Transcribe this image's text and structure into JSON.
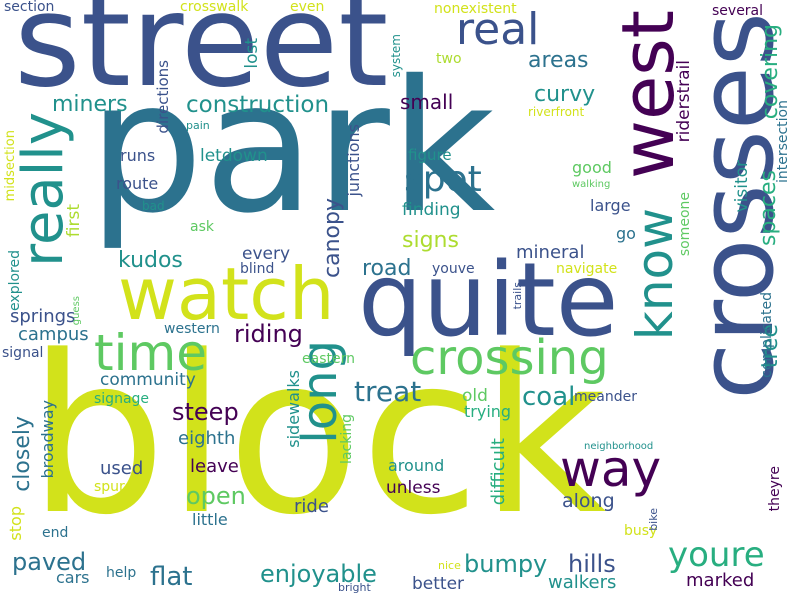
{
  "cloud": {
    "palette": [
      "#440154",
      "#3b528b",
      "#2c728e",
      "#21918c",
      "#28ae80",
      "#5ec962",
      "#addc30",
      "#d2e21b"
    ],
    "words": [
      {
        "text": "block",
        "color": "#d2e21b"
      },
      {
        "text": "park",
        "color": "#2c728e"
      },
      {
        "text": "street",
        "color": "#3b528b"
      },
      {
        "text": "crosses",
        "color": "#3b528b"
      },
      {
        "text": "quite",
        "color": "#3b528b"
      },
      {
        "text": "watch",
        "color": "#d2e21b"
      },
      {
        "text": "west",
        "color": "#440154"
      },
      {
        "text": "crossing",
        "color": "#5ec962"
      },
      {
        "text": "really",
        "color": "#21918c"
      },
      {
        "text": "time",
        "color": "#5ec962"
      },
      {
        "text": "long",
        "color": "#21918c"
      },
      {
        "text": "know",
        "color": "#21918c"
      },
      {
        "text": "way",
        "color": "#440154"
      },
      {
        "text": "real",
        "color": "#3b528b"
      },
      {
        "text": "spot",
        "color": "#2c728e"
      },
      {
        "text": "youre",
        "color": "#28ae80"
      },
      {
        "text": "construction",
        "color": "#21918c"
      },
      {
        "text": "miners",
        "color": "#21918c"
      },
      {
        "text": "canopy",
        "color": "#3b528b"
      },
      {
        "text": "treat",
        "color": "#2c728e"
      },
      {
        "text": "coal",
        "color": "#21918c"
      },
      {
        "text": "riding",
        "color": "#440154"
      },
      {
        "text": "steep",
        "color": "#440154"
      },
      {
        "text": "open",
        "color": "#5ec962"
      },
      {
        "text": "bumpy",
        "color": "#21918c"
      },
      {
        "text": "closely",
        "color": "#2c728e"
      },
      {
        "text": "hills",
        "color": "#3b528b"
      },
      {
        "text": "paved",
        "color": "#2c728e"
      },
      {
        "text": "flat",
        "color": "#2c728e"
      },
      {
        "text": "enjoyable",
        "color": "#21918c"
      },
      {
        "text": "areas",
        "color": "#2c728e"
      },
      {
        "text": "curvy",
        "color": "#21918c"
      },
      {
        "text": "small",
        "color": "#440154"
      },
      {
        "text": "covering",
        "color": "#28ae80"
      },
      {
        "text": "spaces",
        "color": "#28ae80"
      },
      {
        "text": "tree",
        "color": "#21918c"
      },
      {
        "text": "kudos",
        "color": "#21918c"
      },
      {
        "text": "road",
        "color": "#2c728e"
      },
      {
        "text": "signs",
        "color": "#addc30"
      },
      {
        "text": "mineral",
        "color": "#3b528b"
      },
      {
        "text": "finding",
        "color": "#21918c"
      },
      {
        "text": "difficult",
        "color": "#28ae80"
      },
      {
        "text": "along",
        "color": "#3b528b"
      },
      {
        "text": "ride",
        "color": "#3b528b"
      },
      {
        "text": "leave",
        "color": "#440154"
      },
      {
        "text": "eighth",
        "color": "#2c728e"
      },
      {
        "text": "used",
        "color": "#3b528b"
      },
      {
        "text": "springs",
        "color": "#3b528b"
      },
      {
        "text": "campus",
        "color": "#2c728e"
      },
      {
        "text": "community",
        "color": "#2c728e"
      },
      {
        "text": "better",
        "color": "#3b528b"
      },
      {
        "text": "walkers",
        "color": "#21918c"
      },
      {
        "text": "marked",
        "color": "#440154"
      },
      {
        "text": "lost",
        "color": "#21918c"
      },
      {
        "text": "letdown",
        "color": "#21918c"
      },
      {
        "text": "riderstrail",
        "color": "#440154"
      },
      {
        "text": "visitor",
        "color": "#21918c"
      },
      {
        "text": "every",
        "color": "#3b528b"
      },
      {
        "text": "old",
        "color": "#5ec962"
      },
      {
        "text": "sidewalks",
        "color": "#21918c"
      },
      {
        "text": "junctions",
        "color": "#3b528b"
      },
      {
        "text": "first",
        "color": "#addc30"
      },
      {
        "text": "broadway",
        "color": "#2c728e"
      },
      {
        "text": "directions",
        "color": "#3b528b"
      },
      {
        "text": "unless",
        "color": "#440154"
      },
      {
        "text": "cars",
        "color": "#2c728e"
      },
      {
        "text": "little",
        "color": "#2c728e"
      },
      {
        "text": "route",
        "color": "#3b528b"
      },
      {
        "text": "runs",
        "color": "#3b528b"
      },
      {
        "text": "figure",
        "color": "#21918c"
      },
      {
        "text": "good",
        "color": "#5ec962"
      },
      {
        "text": "large",
        "color": "#3b528b"
      },
      {
        "text": "go",
        "color": "#2c728e"
      },
      {
        "text": "someone",
        "color": "#5ec962"
      },
      {
        "text": "complicated",
        "color": "#2c728e"
      },
      {
        "text": "intersection",
        "color": "#2c728e"
      },
      {
        "text": "section",
        "color": "#3b528b"
      },
      {
        "text": "crosswalk",
        "color": "#d2e21b"
      },
      {
        "text": "even",
        "color": "#d2e21b"
      },
      {
        "text": "nonexistent",
        "color": "#d2e21b"
      },
      {
        "text": "several",
        "color": "#440154"
      },
      {
        "text": "two",
        "color": "#addc30"
      },
      {
        "text": "system",
        "color": "#21918c"
      },
      {
        "text": "riverfront",
        "color": "#d2e21b"
      },
      {
        "text": "pain",
        "color": "#21918c"
      },
      {
        "text": "midsection",
        "color": "#d2e21b"
      },
      {
        "text": "bad",
        "color": "#21918c"
      },
      {
        "text": "ask",
        "color": "#5ec962"
      },
      {
        "text": "blind",
        "color": "#3b528b"
      },
      {
        "text": "youve",
        "color": "#3b528b"
      },
      {
        "text": "navigate",
        "color": "#d2e21b"
      },
      {
        "text": "explored",
        "color": "#21918c"
      },
      {
        "text": "guess",
        "color": "#5ec962"
      },
      {
        "text": "trails",
        "color": "#3b528b"
      },
      {
        "text": "western",
        "color": "#2c728e"
      },
      {
        "text": "signal",
        "color": "#3b528b"
      },
      {
        "text": "eastern",
        "color": "#5ec962"
      },
      {
        "text": "signage",
        "color": "#28ae80"
      },
      {
        "text": "trying",
        "color": "#28ae80"
      },
      {
        "text": "meander",
        "color": "#3b528b"
      },
      {
        "text": "lacking",
        "color": "#5ec962"
      },
      {
        "text": "around",
        "color": "#21918c"
      },
      {
        "text": "spurs",
        "color": "#d2e21b"
      },
      {
        "text": "stop",
        "color": "#d2e21b"
      },
      {
        "text": "end",
        "color": "#2c728e"
      },
      {
        "text": "help",
        "color": "#2c728e"
      },
      {
        "text": "nice",
        "color": "#d2e21b"
      },
      {
        "text": "bright",
        "color": "#3b528b"
      },
      {
        "text": "busy",
        "color": "#d2e21b"
      },
      {
        "text": "bike",
        "color": "#3b528b"
      },
      {
        "text": "neighborhood",
        "color": "#21918c"
      },
      {
        "text": "theyre",
        "color": "#440154"
      },
      {
        "text": "walking",
        "color": "#5ec962"
      }
    ]
  }
}
